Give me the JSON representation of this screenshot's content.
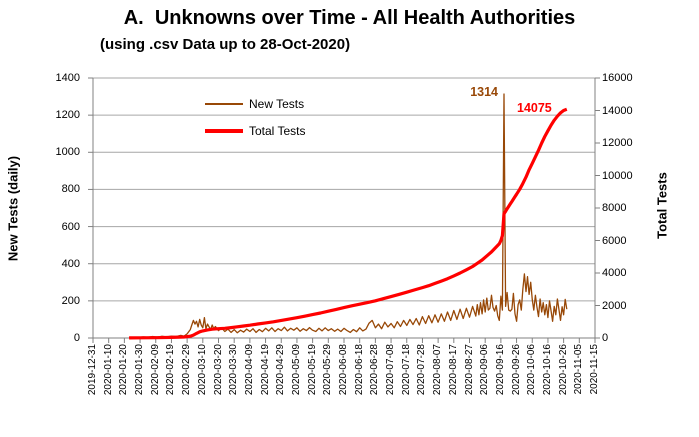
{
  "title": "A.  Unknowns over Time - All Health Authorities",
  "subtitle": "(using .csv Data up to 28-Oct-2020)",
  "legend": [
    {
      "label": "New Tests",
      "color": "#984807",
      "line_width": 2
    },
    {
      "label": "Total Tests",
      "color": "#FF0000",
      "line_width": 4
    }
  ],
  "annotations": {
    "new_peak": {
      "text": "1314",
      "color": "#984807"
    },
    "total_final": {
      "text": "14075",
      "color": "#FF0000"
    }
  },
  "left_axis": {
    "title": "New Tests (daily)",
    "max": 1400,
    "ticks": [
      0,
      200,
      400,
      600,
      800,
      1000,
      1200,
      1400
    ]
  },
  "right_axis": {
    "title": "Total Tests",
    "max": 16000,
    "ticks": [
      0,
      2000,
      4000,
      6000,
      8000,
      10000,
      12000,
      14000,
      16000
    ]
  },
  "x_axis": {
    "span_days": 320,
    "labels": [
      "2019-12-31",
      "2020-01-10",
      "2020-01-20",
      "2020-01-30",
      "2020-02-09",
      "2020-02-19",
      "2020-02-29",
      "2020-03-10",
      "2020-03-20",
      "2020-03-30",
      "2020-04-09",
      "2020-04-19",
      "2020-04-29",
      "2020-05-09",
      "2020-05-19",
      "2020-05-29",
      "2020-06-08",
      "2020-06-18",
      "2020-06-28",
      "2020-07-08",
      "2020-07-18",
      "2020-07-28",
      "2020-08-07",
      "2020-08-17",
      "2020-08-27",
      "2020-09-06",
      "2020-09-16",
      "2020-09-26",
      "2020-10-06",
      "2020-10-16",
      "2020-10-26",
      "2020-11-05",
      "2020-11-15"
    ]
  },
  "chart_data": {
    "type": "line",
    "x_unit": "days since 2019-12-31",
    "grid": "horizontal, every 200 left-axis units",
    "legend_position": "inside top-left",
    "series": [
      {
        "name": "New Tests",
        "axis": "left",
        "color": "#984807",
        "width": 1.3,
        "peak_annotation": 1314,
        "points": [
          [
            23,
            2
          ],
          [
            26,
            4
          ],
          [
            29,
            3
          ],
          [
            32,
            6
          ],
          [
            35,
            4
          ],
          [
            38,
            8
          ],
          [
            41,
            5
          ],
          [
            44,
            9
          ],
          [
            47,
            6
          ],
          [
            50,
            10
          ],
          [
            53,
            8
          ],
          [
            56,
            14
          ],
          [
            58,
            10
          ],
          [
            60,
            22
          ],
          [
            62,
            45
          ],
          [
            63,
            70
          ],
          [
            64,
            95
          ],
          [
            65,
            75
          ],
          [
            66,
            90
          ],
          [
            67,
            60
          ],
          [
            68,
            100
          ],
          [
            69,
            70
          ],
          [
            70,
            55
          ],
          [
            71,
            110
          ],
          [
            72,
            50
          ],
          [
            73,
            75
          ],
          [
            74,
            60
          ],
          [
            75,
            45
          ],
          [
            76,
            70
          ],
          [
            77,
            50
          ],
          [
            78,
            62
          ],
          [
            80,
            40
          ],
          [
            82,
            55
          ],
          [
            84,
            35
          ],
          [
            86,
            48
          ],
          [
            88,
            30
          ],
          [
            90,
            45
          ],
          [
            92,
            28
          ],
          [
            94,
            42
          ],
          [
            96,
            32
          ],
          [
            98,
            48
          ],
          [
            100,
            35
          ],
          [
            102,
            50
          ],
          [
            104,
            30
          ],
          [
            106,
            46
          ],
          [
            108,
            34
          ],
          [
            110,
            52
          ],
          [
            112,
            38
          ],
          [
            114,
            55
          ],
          [
            116,
            35
          ],
          [
            118,
            50
          ],
          [
            120,
            40
          ],
          [
            122,
            58
          ],
          [
            124,
            38
          ],
          [
            126,
            52
          ],
          [
            128,
            42
          ],
          [
            130,
            55
          ],
          [
            132,
            36
          ],
          [
            134,
            50
          ],
          [
            136,
            40
          ],
          [
            138,
            56
          ],
          [
            140,
            42
          ],
          [
            142,
            35
          ],
          [
            144,
            52
          ],
          [
            146,
            38
          ],
          [
            148,
            55
          ],
          [
            150,
            40
          ],
          [
            152,
            50
          ],
          [
            154,
            36
          ],
          [
            156,
            48
          ],
          [
            158,
            35
          ],
          [
            160,
            52
          ],
          [
            162,
            40
          ],
          [
            164,
            30
          ],
          [
            166,
            46
          ],
          [
            168,
            34
          ],
          [
            170,
            55
          ],
          [
            172,
            38
          ],
          [
            174,
            48
          ],
          [
            176,
            80
          ],
          [
            178,
            95
          ],
          [
            180,
            55
          ],
          [
            182,
            75
          ],
          [
            184,
            50
          ],
          [
            186,
            85
          ],
          [
            188,
            60
          ],
          [
            190,
            78
          ],
          [
            192,
            55
          ],
          [
            194,
            88
          ],
          [
            196,
            62
          ],
          [
            198,
            95
          ],
          [
            200,
            68
          ],
          [
            202,
            100
          ],
          [
            204,
            72
          ],
          [
            206,
            105
          ],
          [
            208,
            70
          ],
          [
            210,
            115
          ],
          [
            212,
            78
          ],
          [
            214,
            120
          ],
          [
            216,
            82
          ],
          [
            218,
            125
          ],
          [
            220,
            85
          ],
          [
            222,
            130
          ],
          [
            224,
            90
          ],
          [
            226,
            140
          ],
          [
            228,
            95
          ],
          [
            230,
            148
          ],
          [
            232,
            100
          ],
          [
            234,
            155
          ],
          [
            236,
            105
          ],
          [
            238,
            160
          ],
          [
            240,
            112
          ],
          [
            242,
            170
          ],
          [
            244,
            118
          ],
          [
            245,
            180
          ],
          [
            246,
            125
          ],
          [
            247,
            190
          ],
          [
            248,
            130
          ],
          [
            249,
            205
          ],
          [
            250,
            140
          ],
          [
            251,
            215
          ],
          [
            252,
            150
          ],
          [
            253,
            160
          ],
          [
            254,
            230
          ],
          [
            255,
            165
          ],
          [
            256,
            145
          ],
          [
            257,
            175
          ],
          [
            258,
            120
          ],
          [
            259,
            95
          ],
          [
            260,
            225
          ],
          [
            261,
            150
          ],
          [
            262,
            1314
          ],
          [
            263,
            170
          ],
          [
            264,
            245
          ],
          [
            265,
            150
          ],
          [
            266,
            145
          ],
          [
            267,
            155
          ],
          [
            268,
            240
          ],
          [
            269,
            130
          ],
          [
            270,
            90
          ],
          [
            271,
            180
          ],
          [
            272,
            205
          ],
          [
            273,
            150
          ],
          [
            274,
            260
          ],
          [
            275,
            345
          ],
          [
            276,
            250
          ],
          [
            277,
            330
          ],
          [
            278,
            235
          ],
          [
            279,
            300
          ],
          [
            280,
            205
          ],
          [
            281,
            150
          ],
          [
            282,
            230
          ],
          [
            283,
            165
          ],
          [
            284,
            115
          ],
          [
            285,
            210
          ],
          [
            286,
            140
          ],
          [
            287,
            190
          ],
          [
            288,
            125
          ],
          [
            289,
            180
          ],
          [
            290,
            110
          ],
          [
            291,
            200
          ],
          [
            292,
            145
          ],
          [
            293,
            90
          ],
          [
            294,
            170
          ],
          [
            295,
            125
          ],
          [
            296,
            210
          ],
          [
            297,
            155
          ],
          [
            298,
            95
          ],
          [
            299,
            168
          ],
          [
            300,
            125
          ],
          [
            301,
            208
          ],
          [
            302,
            155
          ]
        ]
      },
      {
        "name": "Total Tests",
        "axis": "right",
        "color": "#FF0000",
        "width": 3.2,
        "final_annotation": 14075,
        "points": [
          [
            23,
            5
          ],
          [
            30,
            10
          ],
          [
            40,
            20
          ],
          [
            50,
            40
          ],
          [
            58,
            60
          ],
          [
            62,
            110
          ],
          [
            64,
            180
          ],
          [
            66,
            280
          ],
          [
            68,
            380
          ],
          [
            70,
            440
          ],
          [
            73,
            500
          ],
          [
            76,
            540
          ],
          [
            80,
            570
          ],
          [
            84,
            600
          ],
          [
            88,
            640
          ],
          [
            92,
            690
          ],
          [
            96,
            740
          ],
          [
            100,
            790
          ],
          [
            105,
            860
          ],
          [
            110,
            930
          ],
          [
            115,
            1000
          ],
          [
            120,
            1080
          ],
          [
            125,
            1160
          ],
          [
            130,
            1250
          ],
          [
            135,
            1340
          ],
          [
            140,
            1440
          ],
          [
            145,
            1540
          ],
          [
            150,
            1650
          ],
          [
            155,
            1760
          ],
          [
            160,
            1870
          ],
          [
            165,
            1980
          ],
          [
            170,
            2080
          ],
          [
            175,
            2180
          ],
          [
            180,
            2290
          ],
          [
            185,
            2420
          ],
          [
            190,
            2550
          ],
          [
            195,
            2680
          ],
          [
            200,
            2820
          ],
          [
            205,
            2960
          ],
          [
            210,
            3100
          ],
          [
            214,
            3220
          ],
          [
            218,
            3360
          ],
          [
            222,
            3500
          ],
          [
            226,
            3650
          ],
          [
            230,
            3820
          ],
          [
            234,
            4000
          ],
          [
            238,
            4200
          ],
          [
            242,
            4400
          ],
          [
            245,
            4600
          ],
          [
            248,
            4800
          ],
          [
            251,
            5050
          ],
          [
            254,
            5300
          ],
          [
            257,
            5600
          ],
          [
            259,
            5800
          ],
          [
            260,
            6000
          ],
          [
            261,
            6300
          ],
          [
            262,
            7650
          ],
          [
            263,
            7800
          ],
          [
            264,
            7950
          ],
          [
            265,
            8100
          ],
          [
            266,
            8250
          ],
          [
            267,
            8400
          ],
          [
            268,
            8550
          ],
          [
            269,
            8700
          ],
          [
            270,
            8850
          ],
          [
            272,
            9150
          ],
          [
            274,
            9500
          ],
          [
            276,
            9900
          ],
          [
            278,
            10350
          ],
          [
            280,
            10750
          ],
          [
            282,
            11150
          ],
          [
            284,
            11550
          ],
          [
            286,
            12000
          ],
          [
            288,
            12400
          ],
          [
            290,
            12750
          ],
          [
            292,
            13100
          ],
          [
            294,
            13400
          ],
          [
            296,
            13650
          ],
          [
            298,
            13850
          ],
          [
            300,
            14000
          ],
          [
            301,
            14040
          ],
          [
            302,
            14075
          ]
        ]
      }
    ]
  }
}
